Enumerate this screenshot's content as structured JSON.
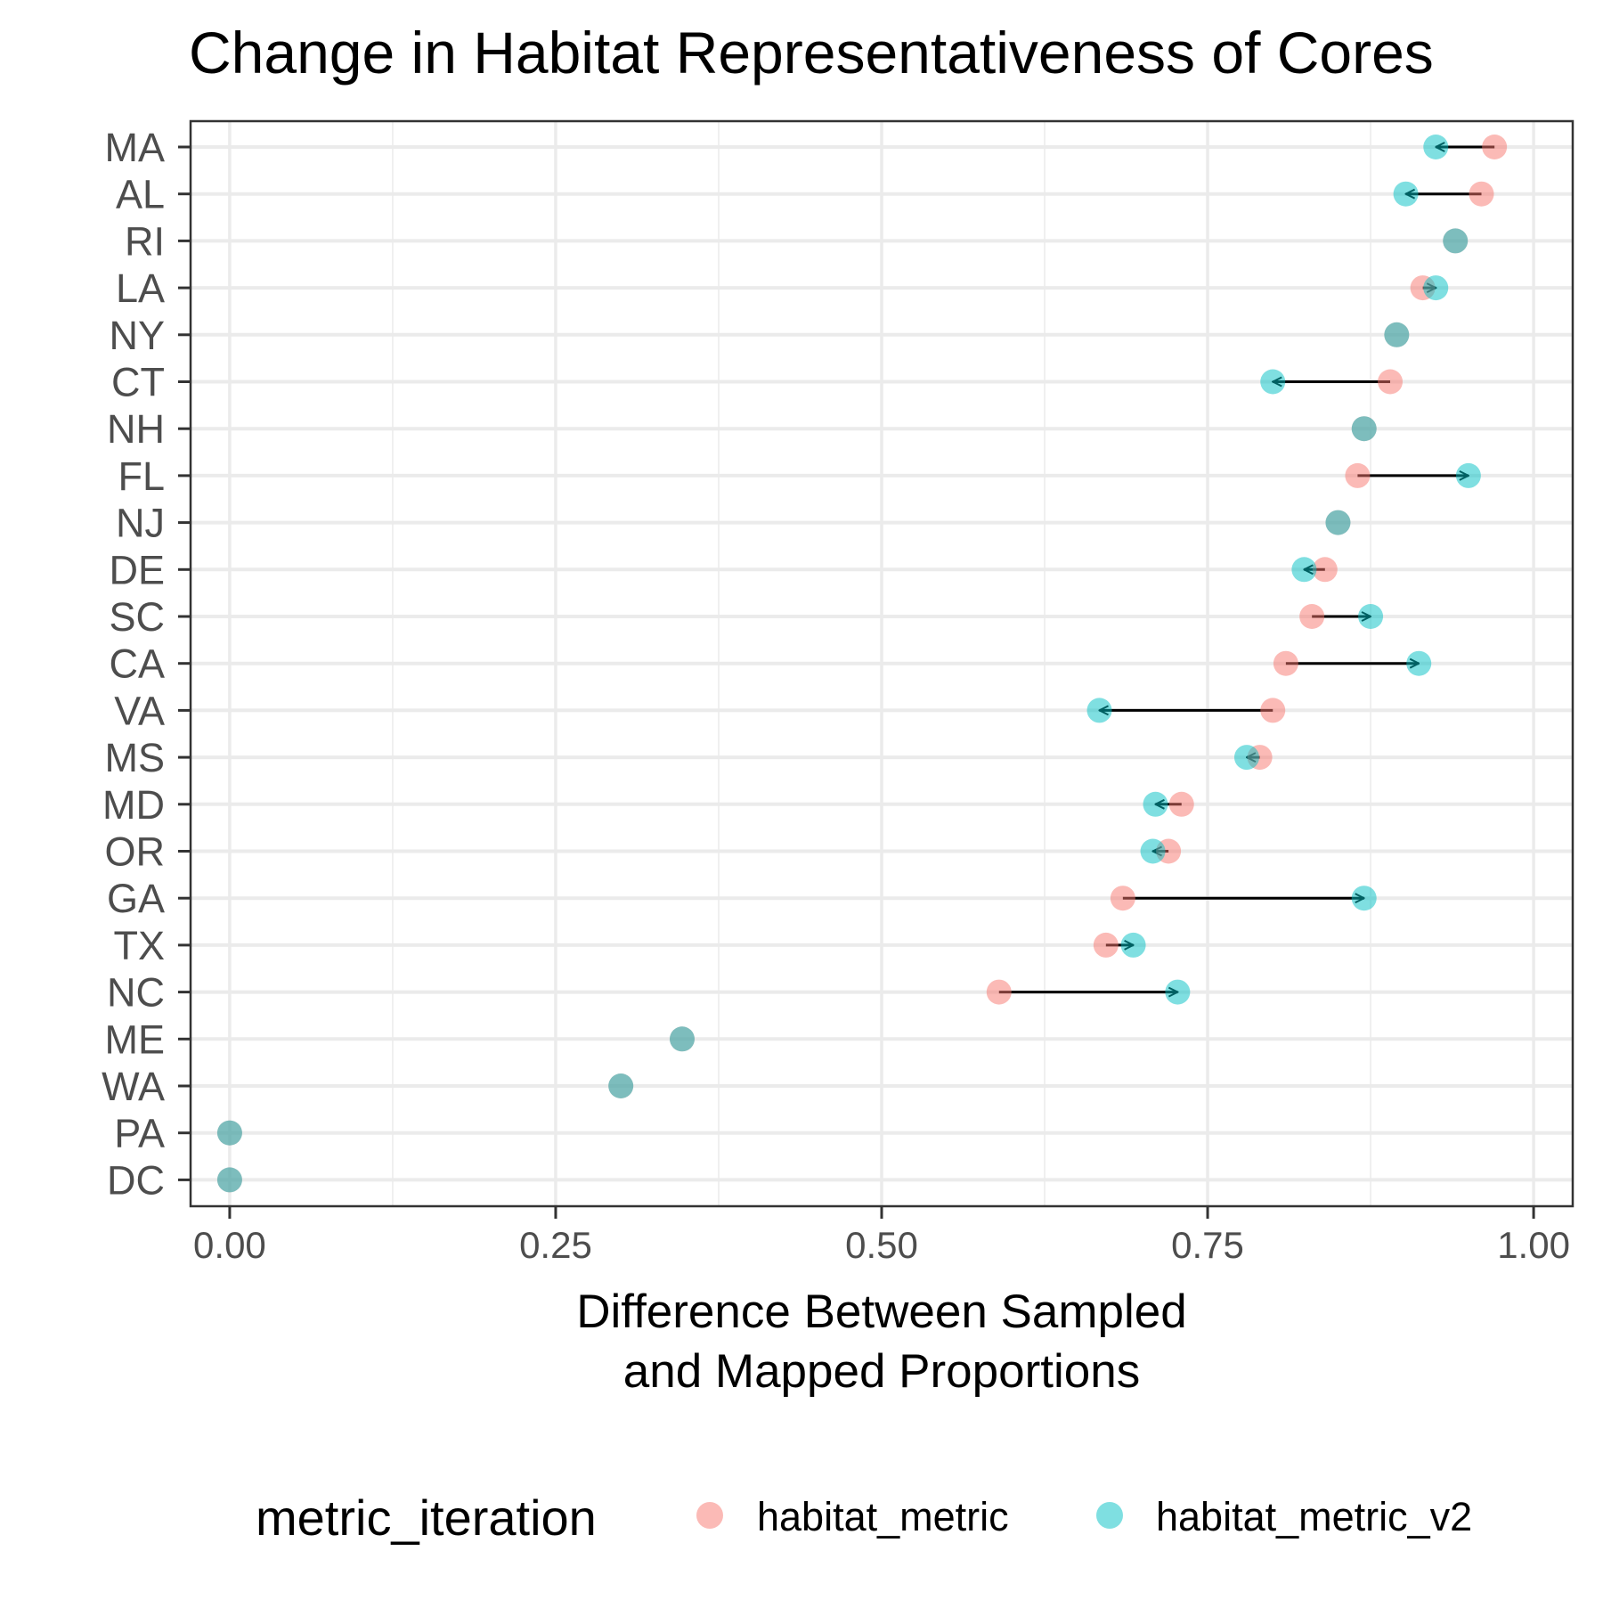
{
  "chart_data": {
    "type": "scatter",
    "subtype": "dumbbell-arrow",
    "title": "Change in Habitat Representativeness of Cores",
    "xlabel": [
      "Difference Between Sampled",
      "and Mapped Proportions"
    ],
    "ylabel": "",
    "xlim": [
      -0.03,
      1.03
    ],
    "x_ticks": [
      0.0,
      0.25,
      0.5,
      0.75,
      1.0
    ],
    "x_tick_labels": [
      "0.00",
      "0.25",
      "0.50",
      "0.75",
      "1.00"
    ],
    "grid": true,
    "legend": {
      "title": "metric_iteration",
      "position": "bottom",
      "entries": [
        {
          "label": "habitat_metric",
          "color": "#F8766D"
        },
        {
          "label": "habitat_metric_v2",
          "color": "#00BFC4"
        }
      ]
    },
    "categories": [
      "MA",
      "AL",
      "RI",
      "LA",
      "NY",
      "CT",
      "NH",
      "FL",
      "NJ",
      "DE",
      "SC",
      "CA",
      "VA",
      "MS",
      "MD",
      "OR",
      "GA",
      "TX",
      "NC",
      "ME",
      "WA",
      "PA",
      "DC"
    ],
    "series": [
      {
        "name": "habitat_metric",
        "color": "#F8766D",
        "values": [
          0.97,
          0.96,
          0.94,
          0.915,
          0.895,
          0.89,
          0.87,
          0.865,
          0.85,
          0.84,
          0.83,
          0.81,
          0.8,
          0.79,
          0.73,
          0.72,
          0.685,
          0.672,
          0.59,
          0.347,
          0.3,
          0.0,
          0.0
        ]
      },
      {
        "name": "habitat_metric_v2",
        "color": "#00BFC4",
        "values": [
          0.925,
          0.902,
          0.94,
          0.925,
          0.895,
          0.8,
          0.87,
          0.95,
          0.85,
          0.824,
          0.875,
          0.912,
          0.667,
          0.78,
          0.71,
          0.708,
          0.87,
          0.693,
          0.727,
          0.347,
          0.3,
          0.0,
          0.0
        ]
      }
    ]
  }
}
